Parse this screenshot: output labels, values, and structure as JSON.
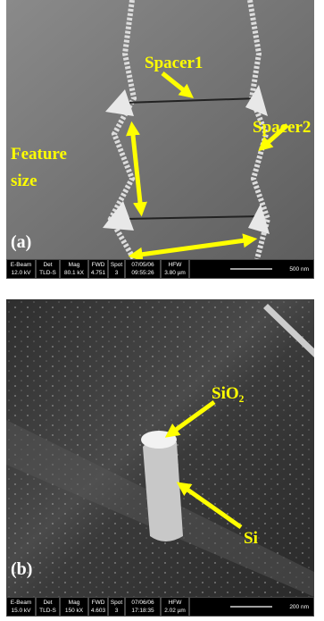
{
  "panels": [
    {
      "labels": [
        "Spacer1",
        "Spacer2",
        "Feature",
        "size",
        "(a)"
      ],
      "databar": [
        {
          "header": "E-Beam",
          "value": "12.0 kV"
        },
        {
          "header": "Det",
          "value": "TLD-S"
        },
        {
          "header": "Mag",
          "value": "80.1 kX"
        },
        {
          "header": "FWD",
          "value": "4.751"
        },
        {
          "header": "Spot",
          "value": "3"
        },
        {
          "header": "07/05/06",
          "value": "09:55:26"
        },
        {
          "header": "HFW",
          "value": "3.80 µm"
        }
      ],
      "scale": "500 nm"
    },
    {
      "labels": [
        "SiO₂",
        "Si",
        "(b)"
      ],
      "databar": [
        {
          "header": "E-Beam",
          "value": "15.0 kV"
        },
        {
          "header": "Det",
          "value": "TLD-S"
        },
        {
          "header": "Mag",
          "value": "150 kX"
        },
        {
          "header": "FWD",
          "value": "4.603"
        },
        {
          "header": "Spot",
          "value": "3"
        },
        {
          "header": "07/06/06",
          "value": "17:18:35"
        },
        {
          "header": "HFW",
          "value": "2.02 µm"
        }
      ],
      "scale": "200 nm"
    }
  ]
}
